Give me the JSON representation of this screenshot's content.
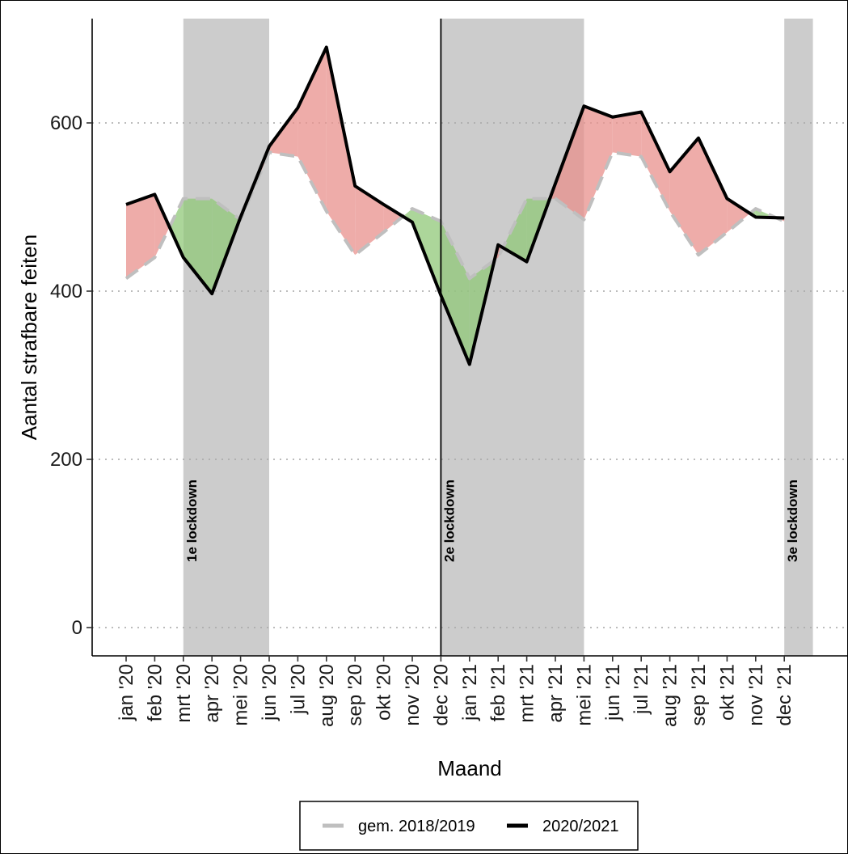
{
  "chart_data": {
    "type": "line",
    "title": "",
    "xlabel": "Maand",
    "ylabel": "Aantal strafbare feiten",
    "ylim": [
      0,
      725
    ],
    "yticks": [
      0,
      200,
      400,
      600
    ],
    "grid": "horizontal dotted",
    "legend_position": "bottom",
    "categories": [
      "jan '20",
      "feb '20",
      "mrt '20",
      "apr '20",
      "mei '20",
      "jun '20",
      "jul '20",
      "aug '20",
      "sep '20",
      "okt '20",
      "nov '20",
      "dec '20",
      "jan '21",
      "feb '21",
      "mrt '21",
      "apr '21",
      "mei '21",
      "jun '21",
      "jul '21",
      "aug '21",
      "sep '21",
      "okt '21",
      "nov '21",
      "dec '21"
    ],
    "series": [
      {
        "name": "gem. 2018/2019",
        "style": "dashed",
        "color": "#bfbfbf",
        "values": [
          415,
          440,
          510,
          510,
          485,
          565,
          560,
          495,
          443,
          470,
          498,
          483,
          415,
          440,
          510,
          510,
          485,
          565,
          560,
          495,
          443,
          470,
          498,
          483
        ]
      },
      {
        "name": "2020/2021",
        "style": "solid",
        "color": "#000000",
        "values": [
          503,
          515,
          440,
          397,
          488,
          572,
          618,
          690,
          525,
          503,
          482,
          395,
          313,
          455,
          435,
          528,
          620,
          607,
          613,
          542,
          582,
          510,
          488,
          487
        ]
      }
    ],
    "fill_above_color": "#e8908c",
    "fill_below_color": "#90c878",
    "vertical_marker_after": "dec '20",
    "lockdowns": [
      {
        "label": "1e lockdown",
        "from": 2,
        "to": 5
      },
      {
        "label": "2e lockdown",
        "from": 11,
        "to": 16
      },
      {
        "label": "3e lockdown",
        "from": 23,
        "to": 24
      }
    ]
  },
  "legend": {
    "items": [
      {
        "label": "gem. 2018/2019"
      },
      {
        "label": "2020/2021"
      }
    ]
  }
}
